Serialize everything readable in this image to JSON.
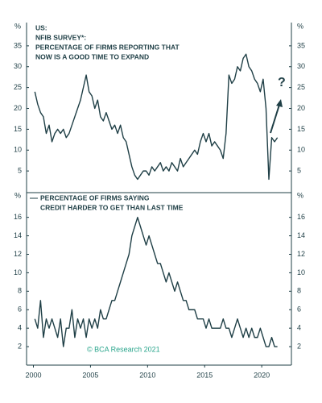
{
  "chart_data": [
    {
      "type": "line",
      "title": [
        "US:",
        "NFIB SURVEY*:",
        "PERCENTAGE OF FIRMS REPORTING THAT",
        "NOW IS A GOOD TIME TO EXPAND"
      ],
      "ylabel": "%",
      "annotation": "?",
      "color": "#1f3f46",
      "xlim": [
        1999.4,
        2022.6
      ],
      "ylim": [
        0,
        40
      ],
      "yticks": [
        5,
        10,
        15,
        20,
        25,
        30,
        35
      ],
      "x": [
        2000.125,
        2000.375,
        2000.625,
        2000.875,
        2001.125,
        2001.375,
        2001.625,
        2001.875,
        2002.125,
        2002.375,
        2002.625,
        2002.875,
        2003.125,
        2003.375,
        2003.625,
        2003.875,
        2004.125,
        2004.375,
        2004.625,
        2004.875,
        2005.125,
        2005.375,
        2005.625,
        2005.875,
        2006.125,
        2006.375,
        2006.625,
        2006.875,
        2007.125,
        2007.375,
        2007.625,
        2007.875,
        2008.125,
        2008.375,
        2008.625,
        2008.875,
        2009.125,
        2009.375,
        2009.625,
        2009.875,
        2010.125,
        2010.375,
        2010.625,
        2010.875,
        2011.125,
        2011.375,
        2011.625,
        2011.875,
        2012.125,
        2012.375,
        2012.625,
        2012.875,
        2013.125,
        2013.375,
        2013.625,
        2013.875,
        2014.125,
        2014.375,
        2014.625,
        2014.875,
        2015.125,
        2015.375,
        2015.625,
        2015.875,
        2016.125,
        2016.375,
        2016.625,
        2016.875,
        2017.125,
        2017.375,
        2017.625,
        2017.875,
        2018.125,
        2018.375,
        2018.625,
        2018.875,
        2019.125,
        2019.375,
        2019.625,
        2019.875,
        2020.125,
        2020.375,
        2020.625,
        2020.875,
        2021.125,
        2021.375
      ],
      "values": [
        24,
        21,
        19,
        18,
        14,
        16,
        12,
        14,
        15,
        14,
        15,
        13,
        14,
        16,
        18,
        20,
        22,
        25,
        28,
        24,
        23,
        20,
        22,
        18,
        17,
        19,
        17,
        15,
        16,
        14,
        16,
        13,
        12,
        9,
        6,
        4,
        3,
        4,
        5,
        5,
        4,
        6,
        5,
        6,
        7,
        5,
        6,
        5,
        7,
        6,
        5,
        8,
        6,
        7,
        8,
        9,
        10,
        9,
        12,
        14,
        12,
        14,
        11,
        12,
        11,
        10,
        8,
        14,
        28,
        26,
        27,
        30,
        29,
        32,
        33,
        30,
        29,
        27,
        26,
        24,
        27,
        20,
        3,
        13,
        12,
        13
      ]
    },
    {
      "type": "line",
      "title": [
        "PERCENTAGE OF FIRMS SAYING",
        "CREDIT HARDER TO GET THAN LAST TIME"
      ],
      "ylabel": "%",
      "color": "#1f3f46",
      "xlim": [
        1999.4,
        2022.6
      ],
      "xticks": [
        2000,
        2005,
        2010,
        2015,
        2020
      ],
      "ylim": [
        0,
        18.5
      ],
      "yticks": [
        2,
        4,
        6,
        8,
        10,
        12,
        14,
        16
      ],
      "x": [
        2000.125,
        2000.375,
        2000.625,
        2000.875,
        2001.125,
        2001.375,
        2001.625,
        2001.875,
        2002.125,
        2002.375,
        2002.625,
        2002.875,
        2003.125,
        2003.375,
        2003.625,
        2003.875,
        2004.125,
        2004.375,
        2004.625,
        2004.875,
        2005.125,
        2005.375,
        2005.625,
        2005.875,
        2006.125,
        2006.375,
        2006.625,
        2006.875,
        2007.125,
        2007.375,
        2007.625,
        2007.875,
        2008.125,
        2008.375,
        2008.625,
        2008.875,
        2009.125,
        2009.375,
        2009.625,
        2009.875,
        2010.125,
        2010.375,
        2010.625,
        2010.875,
        2011.125,
        2011.375,
        2011.625,
        2011.875,
        2012.125,
        2012.375,
        2012.625,
        2012.875,
        2013.125,
        2013.375,
        2013.625,
        2013.875,
        2014.125,
        2014.375,
        2014.625,
        2014.875,
        2015.125,
        2015.375,
        2015.625,
        2015.875,
        2016.125,
        2016.375,
        2016.625,
        2016.875,
        2017.125,
        2017.375,
        2017.625,
        2017.875,
        2018.125,
        2018.375,
        2018.625,
        2018.875,
        2019.125,
        2019.375,
        2019.625,
        2019.875,
        2020.125,
        2020.375,
        2020.625,
        2020.875,
        2021.125,
        2021.375
      ],
      "values": [
        5,
        4,
        7,
        3,
        5,
        4,
        5,
        4,
        3,
        5,
        2,
        4,
        4,
        6,
        3,
        5,
        4,
        5,
        3,
        5,
        4,
        5,
        4,
        6,
        5,
        5,
        6,
        7,
        7,
        8,
        9,
        10,
        11,
        12,
        14,
        15,
        16,
        15,
        14,
        13,
        14,
        13,
        12,
        11,
        11,
        10,
        9,
        10,
        9,
        8,
        9,
        8,
        7,
        7,
        6,
        6,
        6,
        5,
        5,
        5,
        4,
        5,
        4,
        4,
        4,
        4,
        5,
        4,
        4,
        3,
        4,
        5,
        4,
        3,
        4,
        3,
        4,
        3,
        3,
        4,
        3,
        2,
        2,
        3,
        2,
        2
      ]
    }
  ],
  "source": "© BCA Research 2021"
}
